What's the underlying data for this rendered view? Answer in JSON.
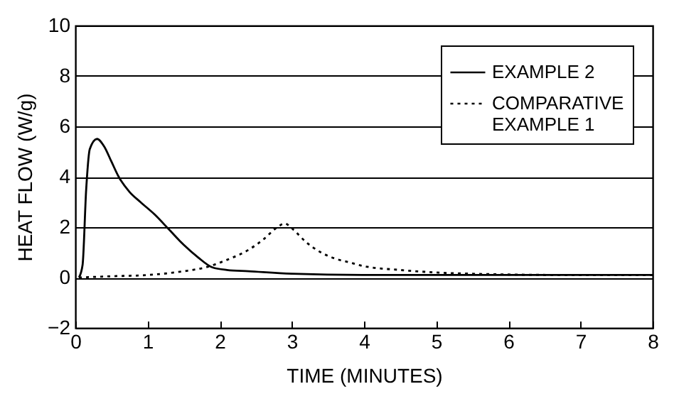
{
  "chart_data": {
    "type": "line",
    "xlabel": "TIME (MINUTES)",
    "ylabel": "HEAT FLOW (W/g)",
    "xlim": [
      0,
      8
    ],
    "xticks": [
      0,
      1,
      2,
      3,
      4,
      5,
      6,
      7,
      8
    ],
    "ylim": [
      -2,
      10
    ],
    "yticks": [
      -2,
      0,
      2,
      4,
      6,
      8,
      10
    ],
    "grid": "y",
    "legend": "top right",
    "series": [
      {
        "name": "EXAMPLE 2",
        "color": "#000000",
        "line_style": "solid",
        "x": [
          0.05,
          0.1,
          0.15,
          0.2,
          0.3,
          0.4,
          0.5,
          0.6,
          0.75,
          0.9,
          1.1,
          1.3,
          1.5,
          1.7,
          1.9,
          2.1,
          2.4,
          3.0,
          4.0,
          5.0,
          6.0,
          7.0,
          8.0
        ],
        "values": [
          0,
          0.5,
          3.5,
          5.1,
          5.5,
          5.2,
          4.6,
          4.0,
          3.4,
          3.0,
          2.5,
          1.9,
          1.3,
          0.8,
          0.4,
          0.3,
          0.25,
          0.15,
          0.1,
          0.1,
          0.1,
          0.1,
          0.1
        ]
      },
      {
        "name": "COMPARATIVE EXAMPLE 1",
        "color": "#000000",
        "line_style": "dotted",
        "x": [
          0.05,
          0.5,
          1.0,
          1.5,
          1.8,
          2.1,
          2.4,
          2.6,
          2.8,
          2.9,
          3.0,
          3.2,
          3.4,
          3.6,
          3.8,
          4.0,
          4.5,
          5.0,
          5.5,
          6.0,
          7.0,
          8.0
        ],
        "values": [
          0,
          0.05,
          0.1,
          0.25,
          0.4,
          0.7,
          1.1,
          1.5,
          2.0,
          2.15,
          1.95,
          1.4,
          1.0,
          0.75,
          0.6,
          0.45,
          0.3,
          0.2,
          0.15,
          0.12,
          0.1,
          0.1
        ]
      }
    ]
  }
}
